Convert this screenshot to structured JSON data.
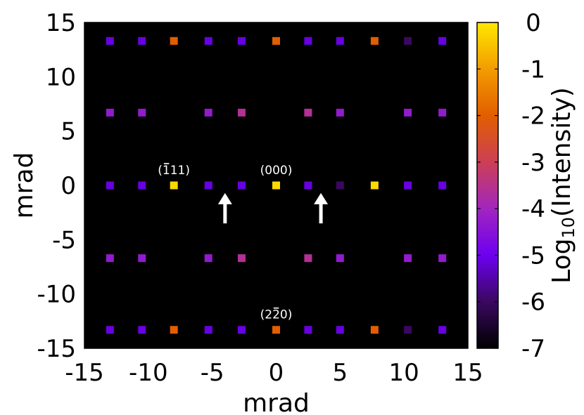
{
  "chart_data": {
    "type": "heatmap",
    "xlabel": "mrad",
    "ylabel": "mrad",
    "xlim": [
      -15,
      15
    ],
    "ylim": [
      -15,
      15
    ],
    "xticks": [
      -15,
      -10,
      -5,
      0,
      5,
      10,
      15
    ],
    "yticks": [
      -15,
      -10,
      -5,
      0,
      5,
      10,
      15
    ],
    "grid": false,
    "background_color": "#000000",
    "colorbar": {
      "label": "Log10(Intensity)",
      "label_base": "Log",
      "label_sub": "10",
      "label_rest": "(Intensity)",
      "range": [
        -7,
        0
      ],
      "ticks": [
        0,
        -1,
        -2,
        -3,
        -4,
        -5,
        -6,
        -7
      ],
      "colormap": [
        "#000000",
        "#3a0860",
        "#6d00f0",
        "#a226bf",
        "#cc3f55",
        "#e25e00",
        "#f29c00",
        "#ffe800"
      ]
    },
    "points": [
      {
        "x": -13.0,
        "y": 13.3,
        "v": -5.1
      },
      {
        "x": -10.5,
        "y": 13.3,
        "v": -5.1
      },
      {
        "x": -8.0,
        "y": 13.3,
        "v": -2.0
      },
      {
        "x": -5.3,
        "y": 13.3,
        "v": -5.1
      },
      {
        "x": -2.7,
        "y": 13.3,
        "v": -5.1
      },
      {
        "x": 0.0,
        "y": 13.3,
        "v": -2.0
      },
      {
        "x": 2.5,
        "y": 13.3,
        "v": -5.1
      },
      {
        "x": 5.0,
        "y": 13.3,
        "v": -5.1
      },
      {
        "x": 7.7,
        "y": 13.3,
        "v": -2.0
      },
      {
        "x": 10.3,
        "y": 13.3,
        "v": -6.0
      },
      {
        "x": 13.0,
        "y": 13.3,
        "v": -5.1
      },
      {
        "x": -13.0,
        "y": 6.7,
        "v": -4.3
      },
      {
        "x": -10.5,
        "y": 6.7,
        "v": -4.3
      },
      {
        "x": -5.3,
        "y": 6.7,
        "v": -4.3
      },
      {
        "x": -2.7,
        "y": 6.7,
        "v": -3.6
      },
      {
        "x": 2.5,
        "y": 6.7,
        "v": -3.6
      },
      {
        "x": 5.0,
        "y": 6.7,
        "v": -4.3
      },
      {
        "x": 10.3,
        "y": 6.7,
        "v": -4.3
      },
      {
        "x": 13.0,
        "y": 6.7,
        "v": -4.3
      },
      {
        "x": -13.0,
        "y": 0.0,
        "v": -5.1
      },
      {
        "x": -10.5,
        "y": 0.0,
        "v": -5.1
      },
      {
        "x": -8.0,
        "y": 0.0,
        "v": -0.2
      },
      {
        "x": -5.3,
        "y": 0.0,
        "v": -5.1
      },
      {
        "x": -2.7,
        "y": 0.0,
        "v": -5.1
      },
      {
        "x": 0.0,
        "y": 0.0,
        "v": -0.2
      },
      {
        "x": 2.5,
        "y": 0.0,
        "v": -5.1
      },
      {
        "x": 5.0,
        "y": 0.0,
        "v": -6.0
      },
      {
        "x": 7.7,
        "y": 0.0,
        "v": -0.2
      },
      {
        "x": 10.3,
        "y": 0.0,
        "v": -5.1
      },
      {
        "x": 13.0,
        "y": 0.0,
        "v": -5.1
      },
      {
        "x": -13.0,
        "y": -6.7,
        "v": -4.3
      },
      {
        "x": -10.5,
        "y": -6.7,
        "v": -4.3
      },
      {
        "x": -5.3,
        "y": -6.7,
        "v": -4.3
      },
      {
        "x": -2.7,
        "y": -6.7,
        "v": -3.6
      },
      {
        "x": 2.5,
        "y": -6.7,
        "v": -3.6
      },
      {
        "x": 5.0,
        "y": -6.7,
        "v": -4.3
      },
      {
        "x": 10.3,
        "y": -6.7,
        "v": -4.3
      },
      {
        "x": 13.0,
        "y": -6.7,
        "v": -4.3
      },
      {
        "x": -13.0,
        "y": -13.3,
        "v": -5.1
      },
      {
        "x": -10.5,
        "y": -13.3,
        "v": -5.1
      },
      {
        "x": -8.0,
        "y": -13.3,
        "v": -2.0
      },
      {
        "x": -5.3,
        "y": -13.3,
        "v": -5.1
      },
      {
        "x": -2.7,
        "y": -13.3,
        "v": -5.1
      },
      {
        "x": 0.0,
        "y": -13.3,
        "v": -2.0
      },
      {
        "x": 2.5,
        "y": -13.3,
        "v": -5.1
      },
      {
        "x": 5.0,
        "y": -13.3,
        "v": -5.1
      },
      {
        "x": 7.7,
        "y": -13.3,
        "v": -2.0
      },
      {
        "x": 10.3,
        "y": -13.3,
        "v": -6.0
      },
      {
        "x": 13.0,
        "y": -13.3,
        "v": -5.1
      }
    ],
    "annotations": [
      {
        "text": "(111)",
        "x": -8.0,
        "y": 0.0,
        "overline_char": 1
      },
      {
        "text": "(000)",
        "x": 0.0,
        "y": 0.0
      },
      {
        "text": "(220)",
        "x": 0.0,
        "y": -13.3,
        "overline_char": 2
      }
    ],
    "arrows": [
      {
        "x": -4.0,
        "y_from": -3.5,
        "y_to": -0.7,
        "color": "#ffffff"
      },
      {
        "x": 3.5,
        "y_from": -3.5,
        "y_to": -0.7,
        "color": "#ffffff"
      }
    ]
  }
}
